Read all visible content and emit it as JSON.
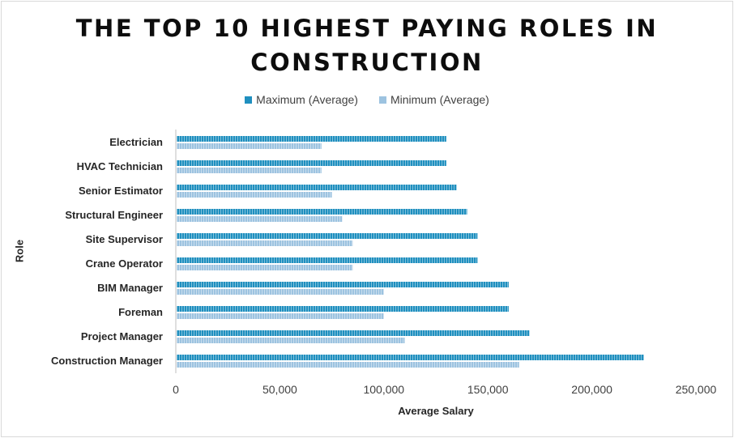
{
  "chart_data": {
    "type": "bar",
    "orientation": "horizontal",
    "title": "THE TOP 10 HIGHEST PAYING ROLES IN CONSTRUCTION",
    "title_lines": [
      "THE TOP 10 HIGHEST PAYING ROLES IN",
      "CONSTRUCTION"
    ],
    "xlabel": "Average Salary",
    "ylabel": "Role",
    "categories": [
      "Electrician",
      "HVAC Technician",
      "Senior Estimator",
      "Structural Engineer",
      "Site Supervisor",
      "Crane Operator",
      "BIM Manager",
      "Foreman",
      "Project Manager",
      "Construction Manager"
    ],
    "series": [
      {
        "name": "Maximum (Average)",
        "color": "#1f8fbf",
        "values": [
          130000,
          130000,
          135000,
          140000,
          145000,
          145000,
          160000,
          160000,
          170000,
          225000
        ]
      },
      {
        "name": "Minimum (Average)",
        "color": "#9dc3e0",
        "values": [
          70000,
          70000,
          75000,
          80000,
          85000,
          85000,
          100000,
          100000,
          110000,
          165000
        ]
      }
    ],
    "xlim": [
      0,
      250000
    ],
    "x_ticks": [
      0,
      50000,
      100000,
      150000,
      200000,
      250000
    ],
    "x_tick_labels": [
      "0",
      "50,000",
      "100,000",
      "150,000",
      "200,000",
      "250,000"
    ],
    "legend_position": "top",
    "grid": false
  }
}
